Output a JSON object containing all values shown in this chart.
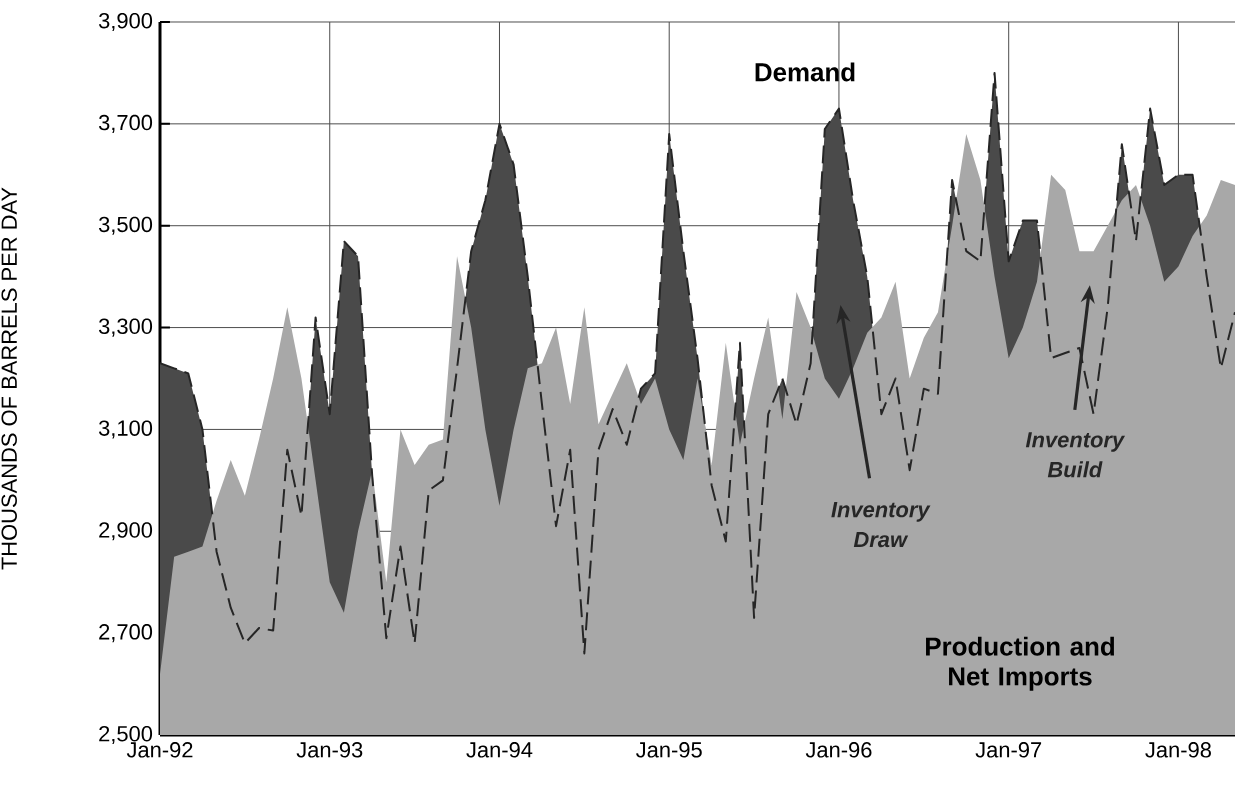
{
  "chart_data": {
    "type": "area",
    "ylabel": "THOUSANDS OF BARRELS PER DAY",
    "x": [
      "1992-01",
      "1992-02",
      "1992-03",
      "1992-04",
      "1992-05",
      "1992-06",
      "1992-07",
      "1992-08",
      "1992-09",
      "1992-10",
      "1992-11",
      "1992-12",
      "1993-01",
      "1993-02",
      "1993-03",
      "1993-04",
      "1993-05",
      "1993-06",
      "1993-07",
      "1993-08",
      "1993-09",
      "1993-10",
      "1993-11",
      "1993-12",
      "1994-01",
      "1994-02",
      "1994-03",
      "1994-04",
      "1994-05",
      "1994-06",
      "1994-07",
      "1994-08",
      "1994-09",
      "1994-10",
      "1994-11",
      "1994-12",
      "1995-01",
      "1995-02",
      "1995-03",
      "1995-04",
      "1995-05",
      "1995-06",
      "1995-07",
      "1995-08",
      "1995-09",
      "1995-10",
      "1995-11",
      "1995-12",
      "1996-01",
      "1996-02",
      "1996-03",
      "1996-04",
      "1996-05",
      "1996-06",
      "1996-07",
      "1996-08",
      "1996-09",
      "1996-10",
      "1996-11",
      "1996-12",
      "1997-01",
      "1997-02",
      "1997-03",
      "1997-04",
      "1997-05",
      "1997-06",
      "1997-07",
      "1997-08",
      "1997-09",
      "1997-10",
      "1997-11",
      "1997-12",
      "1998-01",
      "1998-02",
      "1998-03",
      "1998-04",
      "1998-05"
    ],
    "series": [
      {
        "name": "Demand",
        "line_style": "dashed",
        "color": "#4a4a4a",
        "values": [
          3230,
          3220,
          3210,
          3100,
          2860,
          2750,
          2680,
          2710,
          2705,
          3060,
          2930,
          3320,
          3130,
          3470,
          3440,
          3010,
          2690,
          2870,
          2680,
          2980,
          3000,
          3220,
          3450,
          3550,
          3700,
          3620,
          3400,
          3150,
          2910,
          3060,
          2660,
          3060,
          3140,
          3070,
          3180,
          3210,
          3680,
          3450,
          3240,
          2990,
          2880,
          3270,
          2730,
          3130,
          3200,
          3110,
          3230,
          3690,
          3730,
          3550,
          3400,
          3130,
          3200,
          3020,
          3180,
          3170,
          3590,
          3450,
          3430,
          3800,
          3430,
          3510,
          3510,
          3240,
          3250,
          3260,
          3130,
          3340,
          3660,
          3470,
          3730,
          3580,
          3600,
          3600,
          3400,
          3220,
          3330
        ]
      },
      {
        "name": "Production and Net Imports",
        "color": "#a8a8a8",
        "values": [
          2620,
          2850,
          2860,
          2870,
          2960,
          3040,
          2970,
          3080,
          3200,
          3340,
          3200,
          3000,
          2800,
          2740,
          2900,
          3020,
          2800,
          3100,
          3030,
          3070,
          3080,
          3440,
          3300,
          3100,
          2950,
          3100,
          3220,
          3230,
          3300,
          3150,
          3340,
          3110,
          3170,
          3230,
          3150,
          3200,
          3100,
          3040,
          3200,
          3030,
          3270,
          3070,
          3200,
          3320,
          3120,
          3370,
          3300,
          3200,
          3160,
          3220,
          3290,
          3320,
          3390,
          3200,
          3280,
          3330,
          3500,
          3680,
          3590,
          3400,
          3240,
          3300,
          3390,
          3600,
          3570,
          3450,
          3450,
          3500,
          3550,
          3580,
          3500,
          3390,
          3420,
          3480,
          3520,
          3590,
          3580
        ]
      }
    ],
    "xlim": [
      "1992-01",
      "1998-05"
    ],
    "xticks": [
      {
        "value": "1992-01",
        "label": "Jan-92"
      },
      {
        "value": "1993-01",
        "label": "Jan-93"
      },
      {
        "value": "1994-01",
        "label": "Jan-94"
      },
      {
        "value": "1995-01",
        "label": "Jan-95"
      },
      {
        "value": "1996-01",
        "label": "Jan-96"
      },
      {
        "value": "1997-01",
        "label": "Jan-97"
      },
      {
        "value": "1998-01",
        "label": "Jan-98"
      }
    ],
    "ylim": [
      2500,
      3900
    ],
    "yticks": [
      {
        "value": 2500,
        "label": "2,500"
      },
      {
        "value": 2700,
        "label": "2,700"
      },
      {
        "value": 2900,
        "label": "2,900"
      },
      {
        "value": 3100,
        "label": "3,100"
      },
      {
        "value": 3300,
        "label": "3,300"
      },
      {
        "value": 3500,
        "label": "3,500"
      },
      {
        "value": 3700,
        "label": "3,700"
      },
      {
        "value": 3900,
        "label": "3,900"
      }
    ],
    "grid": true,
    "annotations": [
      "*Inventory Draw*",
      "*Inventory Build*"
    ]
  }
}
